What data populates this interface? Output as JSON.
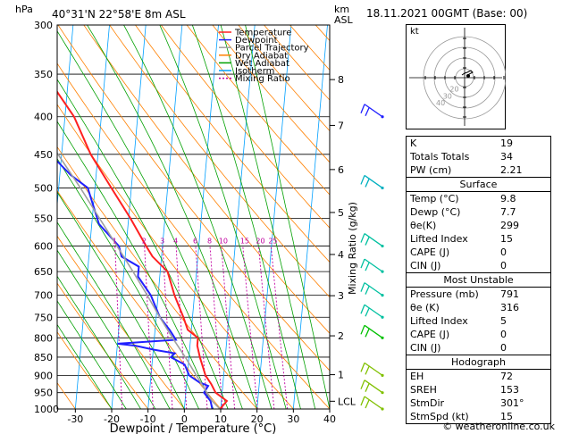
{
  "chart_data": {
    "type": "line",
    "title": "40°31'N 22°58'E 8m ASL",
    "date_label": "18.11.2021 00GMT (Base: 00)",
    "xlabel": "Dewpoint / Temperature (°C)",
    "ylabel": "hPa",
    "y2label": "km ASL",
    "mixing_ratio_label": "Mixing Ratio (g/kg)",
    "xlim": [
      -35,
      40
    ],
    "ylim": [
      1000,
      300
    ],
    "y_log": true,
    "skew_per_decade": 73,
    "x_ticks": [
      -30,
      -20,
      -10,
      0,
      10,
      20,
      30,
      40
    ],
    "pressure_ticks": [
      300,
      350,
      400,
      450,
      500,
      550,
      600,
      650,
      700,
      750,
      800,
      850,
      900,
      950,
      1000
    ],
    "km_ticks": [
      {
        "label": "8",
        "p": 356
      },
      {
        "label": "7",
        "p": 411
      },
      {
        "label": "6",
        "p": 472
      },
      {
        "label": "5",
        "p": 540
      },
      {
        "label": "4",
        "p": 616
      },
      {
        "label": "3",
        "p": 701
      },
      {
        "label": "2",
        "p": 795
      },
      {
        "label": "1",
        "p": 898
      },
      {
        "label": "LCL",
        "p": 976
      }
    ],
    "mixing_ratio_values": [
      "1",
      "2",
      "3",
      "4",
      "6",
      "8",
      "10",
      "15",
      "20",
      "25"
    ],
    "mixing_ratio_g": [
      1,
      2,
      3,
      4,
      6,
      8,
      10,
      15,
      20,
      25
    ],
    "legend": [
      "Temperature",
      "Dewpoint",
      "Parcel Trajectory",
      "Dry Adiabat",
      "Wet Adiabat",
      "Isotherm",
      "Mixing Ratio"
    ],
    "legend_colors": [
      "#ff2020",
      "#2020ff",
      "#a0a0a0",
      "#ff8000",
      "#00a000",
      "#00a0ff",
      "#c000a0"
    ],
    "series": [
      {
        "name": "Temperature",
        "color": "#ff2020",
        "points": [
          [
            1000,
            9.8
          ],
          [
            975,
            11.5
          ],
          [
            950,
            8.2
          ],
          [
            925,
            6.8
          ],
          [
            900,
            5.0
          ],
          [
            850,
            3.0
          ],
          [
            820,
            2.0
          ],
          [
            800,
            2.0
          ],
          [
            780,
            -1.0
          ],
          [
            750,
            -2.5
          ],
          [
            700,
            -5.5
          ],
          [
            650,
            -8.0
          ],
          [
            620,
            -12.5
          ],
          [
            600,
            -14.5
          ],
          [
            550,
            -19.5
          ],
          [
            500,
            -25.5
          ],
          [
            450,
            -32.0
          ],
          [
            400,
            -37.5
          ],
          [
            350,
            -46.5
          ],
          [
            300,
            -56.0
          ]
        ]
      },
      {
        "name": "Dewpoint",
        "color": "#2020ff",
        "points": [
          [
            1000,
            7.7
          ],
          [
            975,
            7.0
          ],
          [
            950,
            5.0
          ],
          [
            930,
            6.0
          ],
          [
            920,
            3.5
          ],
          [
            900,
            0.5
          ],
          [
            870,
            -1.0
          ],
          [
            860,
            -3.0
          ],
          [
            850,
            -5.0
          ],
          [
            840,
            -4.0
          ],
          [
            830,
            -10.0
          ],
          [
            820,
            -15.0
          ],
          [
            815,
            -20.0
          ],
          [
            805,
            -4.0
          ],
          [
            780,
            -6.0
          ],
          [
            750,
            -9.0
          ],
          [
            700,
            -12.0
          ],
          [
            660,
            -16.0
          ],
          [
            640,
            -16.0
          ],
          [
            620,
            -21.0
          ],
          [
            600,
            -22.0
          ],
          [
            560,
            -28.0
          ],
          [
            500,
            -32.0
          ],
          [
            480,
            -37.0
          ],
          [
            460,
            -41.0
          ],
          [
            420,
            -52.0
          ],
          [
            400,
            -55.0
          ],
          [
            380,
            -52.0
          ],
          [
            360,
            -51.0
          ],
          [
            340,
            -58.0
          ],
          [
            320,
            -53.0
          ],
          [
            300,
            -58.0
          ]
        ]
      },
      {
        "name": "Parcel Trajectory",
        "color": "#a0a0a0",
        "points": [
          [
            1000,
            9.8
          ],
          [
            976,
            7.5
          ],
          [
            950,
            5.8
          ],
          [
            900,
            2.5
          ],
          [
            850,
            -1.0
          ],
          [
            800,
            -5.0
          ],
          [
            750,
            -9.0
          ],
          [
            700,
            -13.0
          ],
          [
            650,
            -17.5
          ],
          [
            600,
            -22.5
          ],
          [
            550,
            -28.0
          ],
          [
            500,
            -34.0
          ],
          [
            450,
            -41.0
          ],
          [
            400,
            -48.5
          ],
          [
            350,
            -57.0
          ],
          [
            300,
            -66.0
          ]
        ]
      }
    ],
    "wind_barbs": [
      {
        "p": 400,
        "color": "#2020ff"
      },
      {
        "p": 500,
        "color": "#00b0c0"
      },
      {
        "p": 600,
        "color": "#00c0a0"
      },
      {
        "p": 650,
        "color": "#00c0a0"
      },
      {
        "p": 700,
        "color": "#00c0a0"
      },
      {
        "p": 750,
        "color": "#00c0a0"
      },
      {
        "p": 800,
        "color": "#00c000"
      },
      {
        "p": 900,
        "color": "#80c000"
      },
      {
        "p": 950,
        "color": "#80c000"
      },
      {
        "p": 1000,
        "color": "#80c000"
      }
    ]
  },
  "hodograph": {
    "label": "kt",
    "ring_labels": [
      "40",
      "30",
      "20"
    ],
    "trace": [
      [
        2,
        2
      ],
      [
        5,
        4
      ],
      [
        9,
        6
      ],
      [
        7,
        8
      ],
      [
        3,
        6
      ],
      [
        0,
        5
      ],
      [
        -3,
        3
      ]
    ],
    "mean": [
      4,
      2
    ]
  },
  "indices": [
    {
      "label": "K",
      "value": "19"
    },
    {
      "label": "Totals Totals",
      "value": "34"
    },
    {
      "label": "PW (cm)",
      "value": "2.21"
    }
  ],
  "surface": {
    "title": "Surface",
    "rows": [
      {
        "label": "Temp (°C)",
        "value": "9.8"
      },
      {
        "label": "Dewp (°C)",
        "value": "7.7"
      },
      {
        "label": "θe(K)",
        "value": "299"
      },
      {
        "label": "Lifted Index",
        "value": "15"
      },
      {
        "label": "CAPE (J)",
        "value": "0"
      },
      {
        "label": "CIN (J)",
        "value": "0"
      }
    ]
  },
  "most_unstable": {
    "title": "Most Unstable",
    "rows": [
      {
        "label": "Pressure (mb)",
        "value": "791"
      },
      {
        "label": "θe (K)",
        "value": "316"
      },
      {
        "label": "Lifted Index",
        "value": "5"
      },
      {
        "label": "CAPE (J)",
        "value": "0"
      },
      {
        "label": "CIN (J)",
        "value": "0"
      }
    ]
  },
  "hodograph_table": {
    "title": "Hodograph",
    "rows": [
      {
        "label": "EH",
        "value": "72"
      },
      {
        "label": "SREH",
        "value": "153"
      },
      {
        "label": "StmDir",
        "value": "301°"
      },
      {
        "label": "StmSpd (kt)",
        "value": "15"
      }
    ]
  },
  "copyright": "© weatheronline.co.uk"
}
